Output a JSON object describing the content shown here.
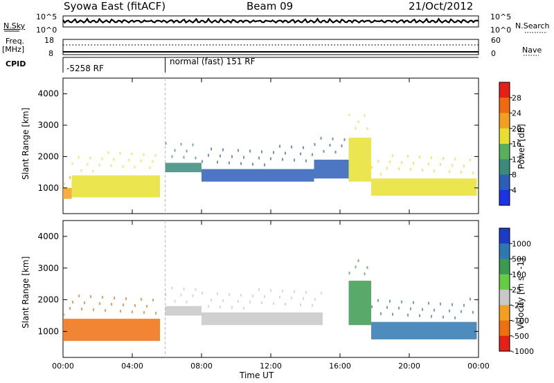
{
  "header": {
    "title": "Syowa East (fitACF)",
    "beam": "Beam 09",
    "date": "21/Oct/2012"
  },
  "labels": {
    "nsky": "N.Sky",
    "nsearch": "N.Search",
    "freq_line1": "Freq.",
    "freq_line2": "[MHz]",
    "nave": "Nave",
    "cpid": "CPID",
    "tick_1e5_left": "10^5",
    "tick_1e0_left": "10^0",
    "tick_1e5_right": "10^5",
    "tick_1e0_right": "10^0",
    "freq_18": "18",
    "freq_8": "8",
    "nave_60": "60",
    "nave_0": "0"
  },
  "cpid": {
    "left_mode": "-5258 RF",
    "right_mode": "normal (fast) 151 RF",
    "switch_time_hours": 5.9
  },
  "chart_data": [
    {
      "type": "heatmap",
      "name": "power",
      "xlabel": "Time UT",
      "ylabel": "Slant Range [km]",
      "x_ticks": [
        "00:00",
        "04:00",
        "08:00",
        "12:00",
        "16:00",
        "20:00",
        "00:00"
      ],
      "y_ticks": [
        1000,
        2000,
        3000,
        4000
      ],
      "xlim_hours": [
        0,
        24
      ],
      "ylim_km": [
        180,
        4500
      ],
      "colorbar_label": "Power [dB]",
      "colorbar_ticks": [
        4,
        8,
        12,
        16,
        20,
        24,
        28
      ],
      "colorbar_colors": [
        "#1a33e6",
        "#2e5fb8",
        "#3c8a7a",
        "#58b05a",
        "#e8e030",
        "#f2a020",
        "#f06a10",
        "#e62014"
      ],
      "echo_regions": [
        {
          "t": [
            0.0,
            0.5
          ],
          "r": [
            650,
            1000
          ],
          "value": 24
        },
        {
          "t": [
            0.5,
            5.6
          ],
          "r": [
            700,
            1400
          ],
          "value": 20
        },
        {
          "t": [
            5.9,
            8.0
          ],
          "r": [
            1500,
            1800
          ],
          "value": 12
        },
        {
          "t": [
            8.0,
            14.5
          ],
          "r": [
            1200,
            1600
          ],
          "value": 8
        },
        {
          "t": [
            14.5,
            16.5
          ],
          "r": [
            1300,
            1900
          ],
          "value": 8
        },
        {
          "t": [
            16.5,
            17.8
          ],
          "r": [
            1200,
            2600
          ],
          "value": 20
        },
        {
          "t": [
            17.8,
            23.9
          ],
          "r": [
            750,
            1300
          ],
          "value": 20
        }
      ]
    },
    {
      "type": "heatmap",
      "name": "velocity",
      "xlabel": "Time UT",
      "ylabel": "Slant Range [km]",
      "x_ticks": [
        "00:00",
        "04:00",
        "08:00",
        "12:00",
        "16:00",
        "20:00",
        "00:00"
      ],
      "y_ticks": [
        1000,
        2000,
        3000,
        4000
      ],
      "xlim_hours": [
        0,
        24
      ],
      "ylim_km": [
        180,
        4500
      ],
      "colorbar_label": "Velocity [m s^-1]",
      "colorbar_ticks": [
        1000,
        500,
        100,
        25,
        -25,
        -100,
        -500,
        -1000
      ],
      "colorbar_colors": [
        "#1a3cc8",
        "#2e78b0",
        "#3c9a50",
        "#66cc44",
        "#c8c8c8",
        "#f2a020",
        "#f07010",
        "#e62014"
      ],
      "echo_regions": [
        {
          "t": [
            0.0,
            5.6
          ],
          "r": [
            700,
            1400
          ],
          "value": -500
        },
        {
          "t": [
            5.9,
            8.0
          ],
          "r": [
            1500,
            1800
          ],
          "value": 0
        },
        {
          "t": [
            8.0,
            15.0
          ],
          "r": [
            1200,
            1600
          ],
          "value": 0
        },
        {
          "t": [
            16.5,
            17.8
          ],
          "r": [
            1200,
            2600
          ],
          "value": 100
        },
        {
          "t": [
            17.8,
            23.9
          ],
          "r": [
            750,
            1300
          ],
          "value": 500
        }
      ]
    }
  ]
}
